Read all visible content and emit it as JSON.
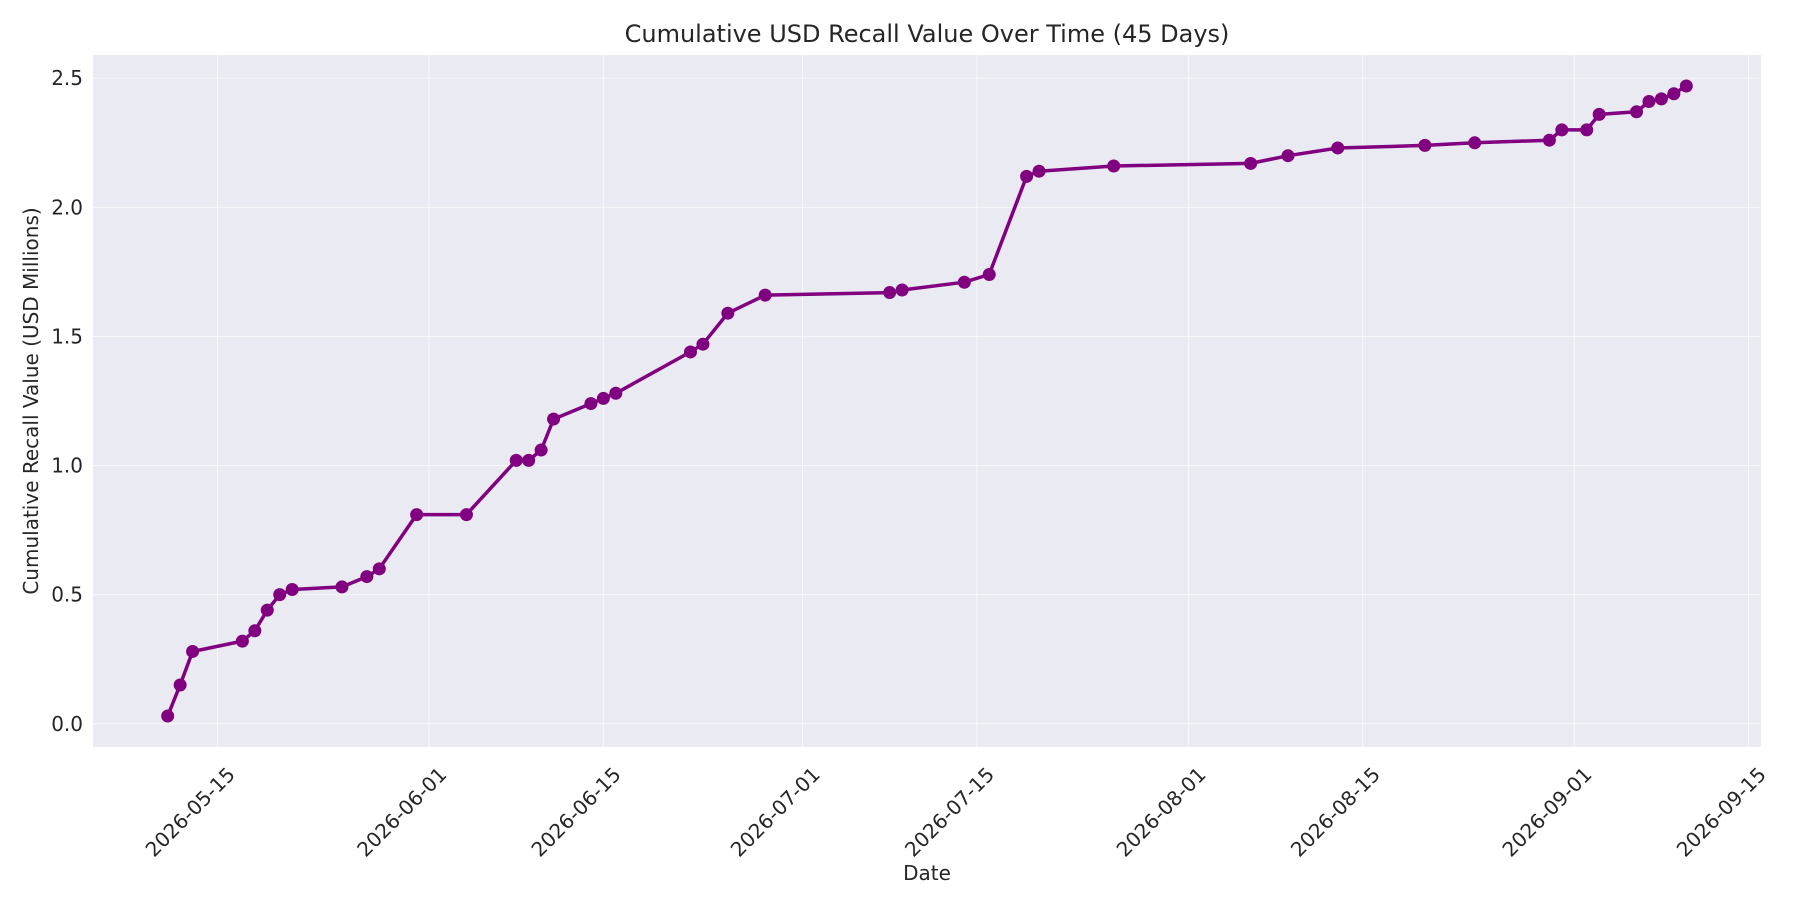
{
  "chart_data": {
    "type": "line",
    "title": "Cumulative USD Recall Value Over Time (45 Days)",
    "xlabel": "Date",
    "ylabel": "Cumulative Recall Value (USD Millions)",
    "xlim": [
      "2026-05-05",
      "2026-09-16"
    ],
    "ylim": [
      -0.09,
      2.59
    ],
    "grid": true,
    "line_color": "#800080",
    "background_color": "#eaeaf2",
    "x_ticks": [
      "2026-05-15",
      "2026-06-01",
      "2026-06-15",
      "2026-07-01",
      "2026-07-15",
      "2026-08-01",
      "2026-08-15",
      "2026-09-01",
      "2026-09-15"
    ],
    "y_ticks": [
      "0.0",
      "0.5",
      "1.0",
      "1.5",
      "2.0",
      "2.5"
    ],
    "series": [
      {
        "x": [
          "2026-05-11",
          "2026-05-12",
          "2026-05-13",
          "2026-05-17",
          "2026-05-18",
          "2026-05-19",
          "2026-05-20",
          "2026-05-21",
          "2026-05-25",
          "2026-05-27",
          "2026-05-28",
          "2026-05-31",
          "2026-06-04",
          "2026-06-08",
          "2026-06-09",
          "2026-06-10",
          "2026-06-11",
          "2026-06-14",
          "2026-06-15",
          "2026-06-16",
          "2026-06-22",
          "2026-06-23",
          "2026-06-25",
          "2026-06-28",
          "2026-07-08",
          "2026-07-09",
          "2026-07-14",
          "2026-07-16",
          "2026-07-19",
          "2026-07-20",
          "2026-07-26",
          "2026-08-06",
          "2026-08-09",
          "2026-08-13",
          "2026-08-20",
          "2026-08-24",
          "2026-08-30",
          "2026-08-31",
          "2026-09-02",
          "2026-09-03",
          "2026-09-06",
          "2026-09-07",
          "2026-09-08",
          "2026-09-09",
          "2026-09-10"
        ],
        "y": [
          0.03,
          0.15,
          0.28,
          0.32,
          0.36,
          0.44,
          0.5,
          0.52,
          0.53,
          0.57,
          0.6,
          0.81,
          0.81,
          1.02,
          1.02,
          1.06,
          1.18,
          1.24,
          1.26,
          1.28,
          1.44,
          1.47,
          1.59,
          1.66,
          1.67,
          1.68,
          1.71,
          1.74,
          2.12,
          2.14,
          2.16,
          2.17,
          2.2,
          2.23,
          2.24,
          2.25,
          2.26,
          2.3,
          2.3,
          2.36,
          2.37,
          2.41,
          2.42,
          2.44,
          2.47
        ]
      }
    ]
  }
}
